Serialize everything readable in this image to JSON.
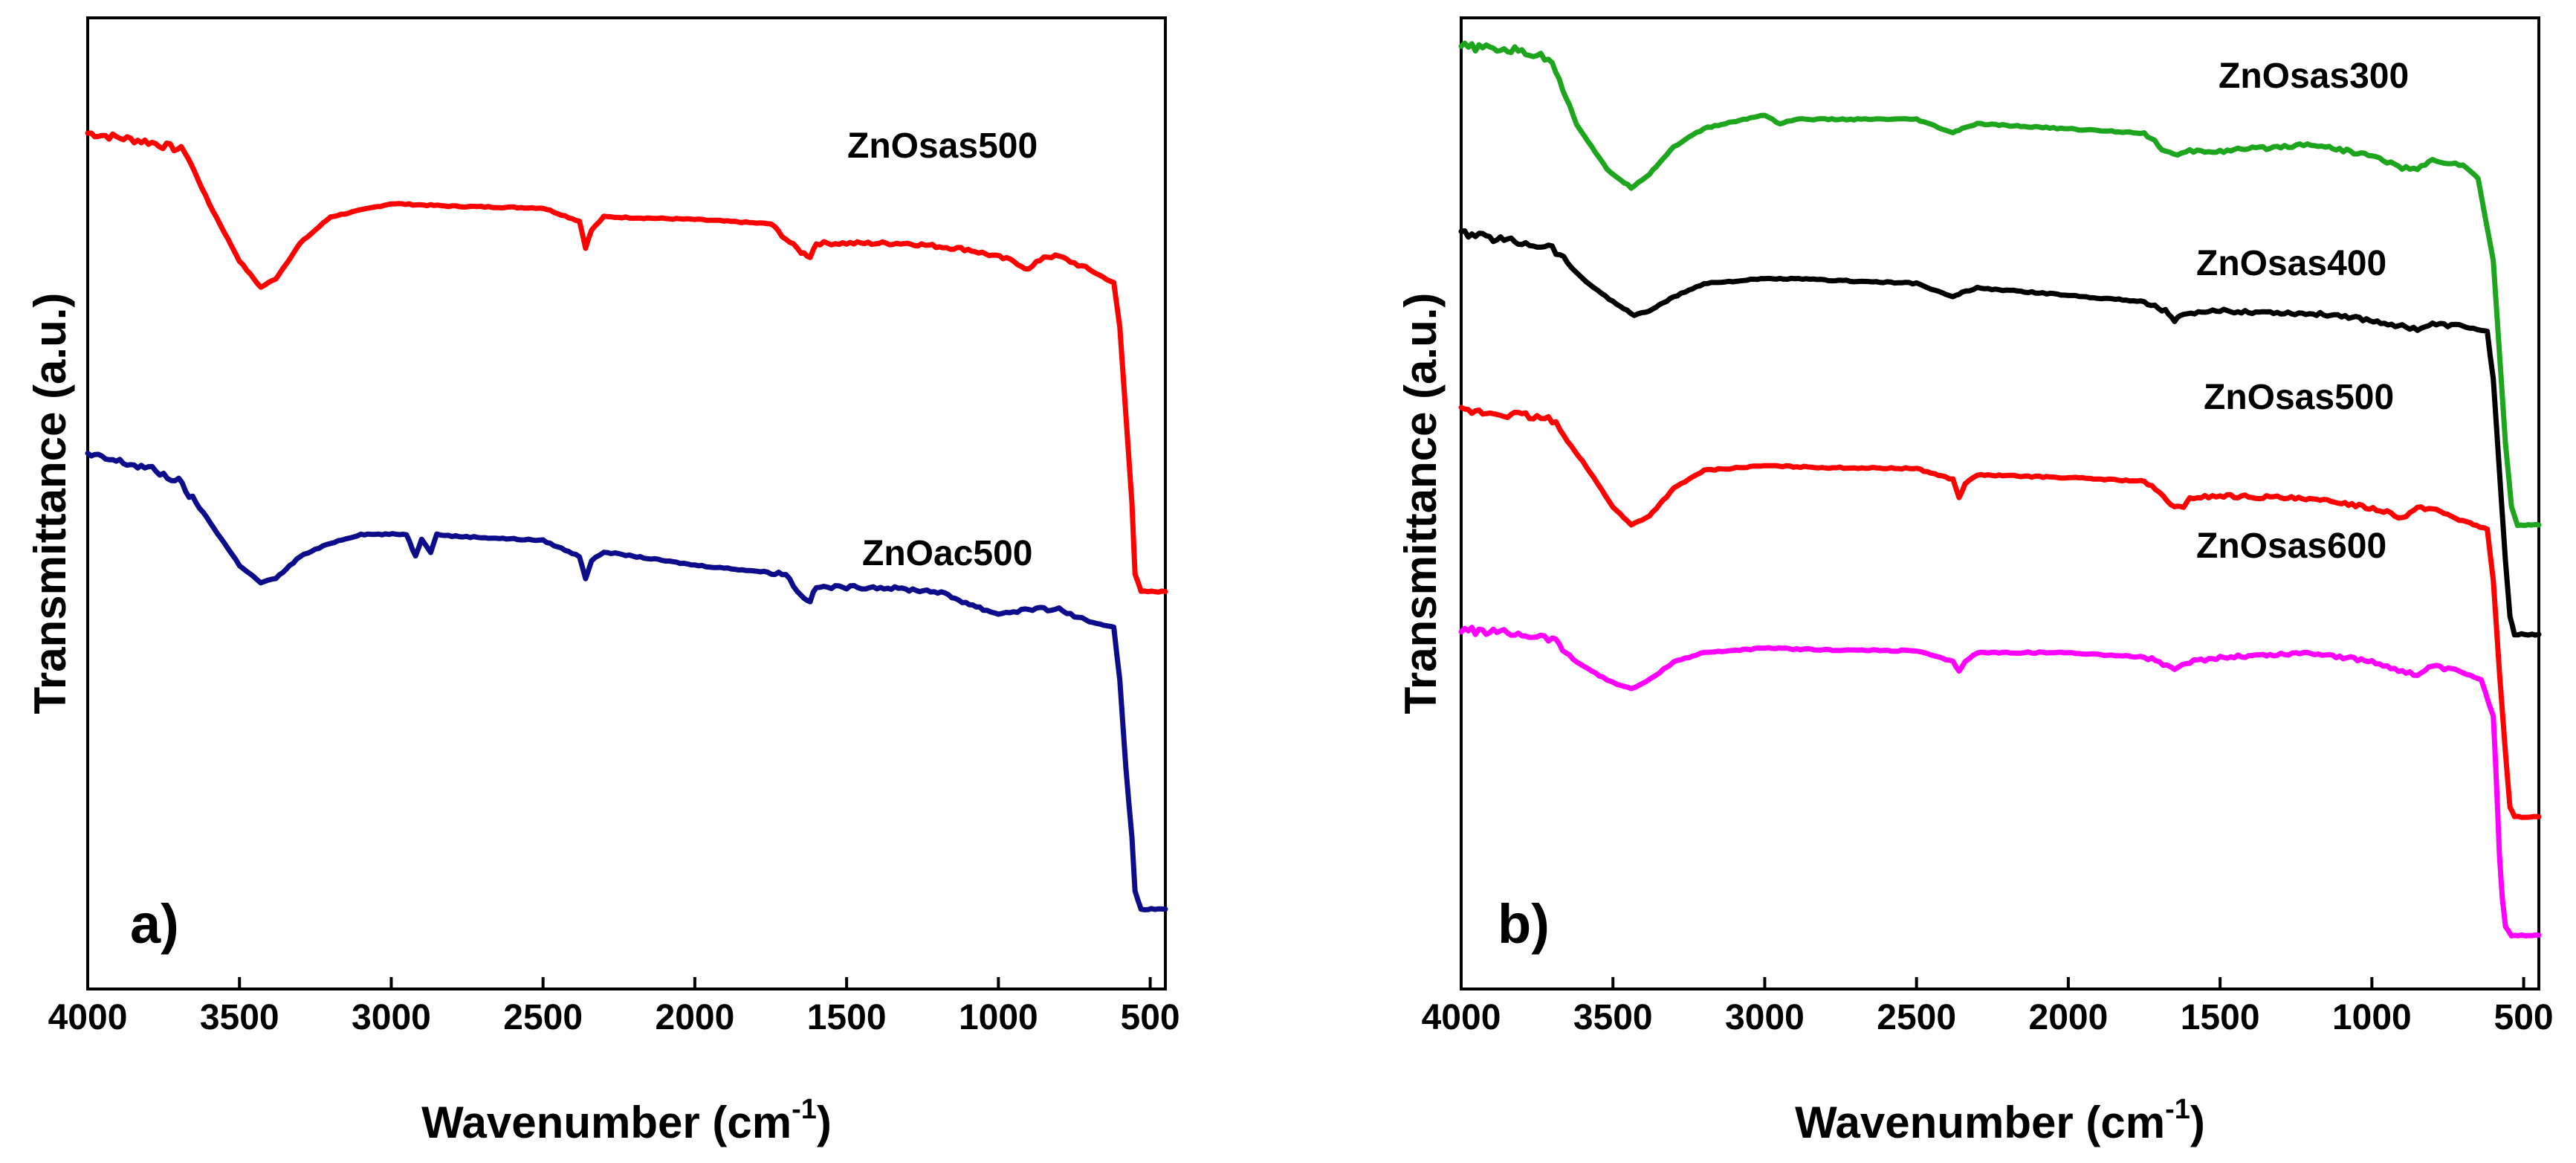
{
  "chart_data": [
    {
      "type": "line",
      "panel_label": "a)",
      "xlabel": "Wavenumber (cm",
      "xlabel_sup": "-1",
      "xlabel_suffix": ")",
      "ylabel": "Transmittance (a.u.)",
      "xlim": [
        4000,
        450
      ],
      "ylim": [
        0,
        1
      ],
      "xticks": [
        4000,
        3500,
        3000,
        2500,
        2000,
        1500,
        1000,
        500
      ],
      "xtick_labels": [
        "4000",
        "3500",
        "3000",
        "2500",
        "2000",
        "1500",
        "1000",
        "500"
      ],
      "series": [
        {
          "name": "ZnOsas500",
          "color": "#ff0000",
          "x": [
            4000,
            3800,
            3680,
            3600,
            3500,
            3430,
            3380,
            3300,
            3200,
            3000,
            2800,
            2500,
            2380,
            2360,
            2340,
            2300,
            2000,
            1750,
            1700,
            1650,
            1620,
            1600,
            1500,
            1300,
            1100,
            950,
            900,
            850,
            800,
            700,
            620,
            600,
            580,
            560,
            550,
            530,
            450
          ],
          "y": [
            0.92,
            0.91,
            0.9,
            0.84,
            0.775,
            0.745,
            0.755,
            0.795,
            0.825,
            0.84,
            0.837,
            0.835,
            0.82,
            0.79,
            0.81,
            0.825,
            0.822,
            0.817,
            0.8,
            0.785,
            0.78,
            0.795,
            0.795,
            0.795,
            0.788,
            0.775,
            0.765,
            0.78,
            0.78,
            0.765,
            0.75,
            0.7,
            0.6,
            0.5,
            0.42,
            0.4,
            0.4
          ]
        },
        {
          "name": "ZnOac500",
          "color": "#0d0d8c",
          "x": [
            4000,
            3800,
            3700,
            3620,
            3500,
            3430,
            3380,
            3300,
            3200,
            3100,
            2950,
            2920,
            2900,
            2870,
            2850,
            2800,
            2500,
            2380,
            2360,
            2340,
            2300,
            2000,
            1700,
            1650,
            1620,
            1600,
            1500,
            1400,
            1200,
            1050,
            1000,
            900,
            800,
            700,
            620,
            600,
            580,
            560,
            550,
            530,
            450
          ],
          "y": [
            0.555,
            0.54,
            0.525,
            0.49,
            0.43,
            0.41,
            0.415,
            0.44,
            0.455,
            0.465,
            0.465,
            0.44,
            0.46,
            0.445,
            0.465,
            0.463,
            0.458,
            0.44,
            0.415,
            0.435,
            0.445,
            0.43,
            0.42,
            0.395,
            0.39,
            0.405,
            0.405,
            0.405,
            0.4,
            0.38,
            0.375,
            0.38,
            0.38,
            0.365,
            0.36,
            0.3,
            0.2,
            0.12,
            0.06,
            0.04,
            0.04
          ]
        }
      ],
      "annotations": [
        "ZnOsas500",
        "ZnOac500"
      ]
    },
    {
      "type": "line",
      "panel_label": "b)",
      "xlabel": "Wavenumber (cm",
      "xlabel_sup": "-1",
      "xlabel_suffix": ")",
      "ylabel": "Transmittance (a.u.)",
      "xlim": [
        4000,
        450
      ],
      "ylim": [
        0,
        1
      ],
      "xticks": [
        4000,
        3500,
        3000,
        2500,
        2000,
        1500,
        1000,
        500
      ],
      "xtick_labels": [
        "4000",
        "3500",
        "3000",
        "2500",
        "2000",
        "1500",
        "1000",
        "500"
      ],
      "series": [
        {
          "name": "ZnOsas300",
          "color": "#1ea51e",
          "x": [
            4000,
            3800,
            3700,
            3620,
            3520,
            3440,
            3380,
            3300,
            3200,
            3000,
            2950,
            2900,
            2500,
            2380,
            2350,
            2300,
            1750,
            1680,
            1640,
            1600,
            1500,
            1300,
            1200,
            1000,
            900,
            850,
            800,
            700,
            650,
            600,
            580,
            560,
            540,
            520,
            450
          ],
          "y": [
            0.985,
            0.98,
            0.97,
            0.9,
            0.85,
            0.83,
            0.845,
            0.875,
            0.895,
            0.91,
            0.9,
            0.905,
            0.905,
            0.89,
            0.895,
            0.9,
            0.89,
            0.87,
            0.865,
            0.87,
            0.87,
            0.875,
            0.878,
            0.865,
            0.852,
            0.85,
            0.86,
            0.855,
            0.84,
            0.75,
            0.65,
            0.55,
            0.48,
            0.46,
            0.46
          ]
        },
        {
          "name": "ZnOsas400",
          "color": "#000000",
          "x": [
            4000,
            3800,
            3700,
            3600,
            3500,
            3430,
            3380,
            3300,
            3200,
            3000,
            2900,
            2500,
            2380,
            2350,
            2300,
            2000,
            1750,
            1680,
            1650,
            1620,
            1500,
            1300,
            1100,
            900,
            850,
            800,
            700,
            620,
            600,
            580,
            560,
            545,
            530,
            450
          ],
          "y": [
            0.78,
            0.77,
            0.765,
            0.73,
            0.705,
            0.69,
            0.695,
            0.71,
            0.725,
            0.73,
            0.73,
            0.725,
            0.71,
            0.715,
            0.72,
            0.712,
            0.705,
            0.695,
            0.685,
            0.69,
            0.695,
            0.693,
            0.69,
            0.678,
            0.675,
            0.68,
            0.678,
            0.672,
            0.62,
            0.52,
            0.42,
            0.36,
            0.34,
            0.34
          ]
        },
        {
          "name": "ZnOsas500",
          "color": "#ff0000",
          "x": [
            4000,
            3800,
            3700,
            3600,
            3500,
            3440,
            3380,
            3300,
            3200,
            3000,
            2800,
            2500,
            2380,
            2360,
            2340,
            2300,
            2000,
            1750,
            1700,
            1650,
            1620,
            1600,
            1500,
            1300,
            1100,
            950,
            900,
            850,
            800,
            700,
            620,
            600,
            580,
            560,
            545,
            530,
            450
          ],
          "y": [
            0.585,
            0.58,
            0.575,
            0.53,
            0.48,
            0.46,
            0.47,
            0.5,
            0.52,
            0.525,
            0.523,
            0.522,
            0.51,
            0.49,
            0.505,
            0.515,
            0.512,
            0.508,
            0.495,
            0.48,
            0.478,
            0.49,
            0.492,
            0.49,
            0.485,
            0.475,
            0.468,
            0.478,
            0.478,
            0.465,
            0.455,
            0.4,
            0.3,
            0.21,
            0.15,
            0.14,
            0.14
          ]
        },
        {
          "name": "ZnOsas600",
          "color": "#ff00ff",
          "x": [
            4000,
            3800,
            3700,
            3620,
            3520,
            3440,
            3380,
            3300,
            3200,
            3000,
            2800,
            2500,
            2380,
            2360,
            2340,
            2300,
            2000,
            1750,
            1700,
            1650,
            1600,
            1500,
            1300,
            1200,
            1000,
            900,
            850,
            800,
            700,
            640,
            600,
            590,
            580,
            570,
            560,
            540,
            450
          ],
          "y": [
            0.345,
            0.34,
            0.335,
            0.31,
            0.29,
            0.28,
            0.29,
            0.31,
            0.32,
            0.325,
            0.323,
            0.322,
            0.31,
            0.3,
            0.31,
            0.32,
            0.32,
            0.315,
            0.31,
            0.3,
            0.31,
            0.315,
            0.318,
            0.32,
            0.31,
            0.3,
            0.295,
            0.305,
            0.298,
            0.29,
            0.25,
            0.18,
            0.1,
            0.05,
            0.02,
            0.01,
            0.01
          ]
        }
      ],
      "annotations": [
        "ZnOsas300",
        "ZnOsas400",
        "ZnOsas500",
        "ZnOsas600"
      ]
    }
  ]
}
